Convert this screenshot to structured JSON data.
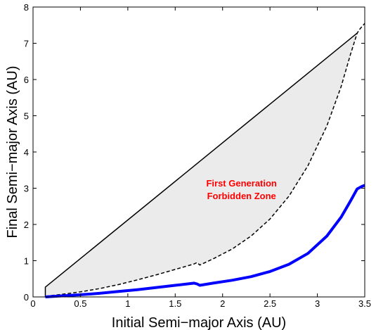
{
  "chart_data": {
    "type": "line",
    "title": "",
    "xlabel": "Initial Semi−major Axis (AU)",
    "ylabel": "Final Semi−major Axis (AU)",
    "xlim": [
      0,
      3.5
    ],
    "ylim": [
      0,
      8
    ],
    "xticks": [
      0,
      0.5,
      1,
      1.5,
      2,
      2.5,
      3,
      3.5
    ],
    "xtick_labels": [
      "0",
      "0.5",
      "1",
      "1.5",
      "2",
      "2.5",
      "3",
      "3.5"
    ],
    "yticks": [
      0,
      1,
      2,
      3,
      4,
      5,
      6,
      7,
      8
    ],
    "ytick_labels": [
      "0",
      "1",
      "2",
      "3",
      "4",
      "5",
      "6",
      "7",
      "8"
    ],
    "grid": false,
    "legend": "none",
    "colors": {
      "zone_fill": "#ebebeb",
      "upper_line": "#000000",
      "dashed_line": "#000000",
      "blue_line": "#0000ff",
      "annotation": "#ff0000"
    },
    "annotation": {
      "line1": "First Generation",
      "line2": "Forbidden Zone",
      "x": 2.2,
      "y1": 3.05,
      "y2": 2.7
    },
    "series": [
      {
        "style": "solid-black",
        "x": [
          0.13,
          0.13,
          3.42
        ],
        "y": [
          0.0,
          0.27,
          7.28
        ]
      },
      {
        "style": "dashed-black",
        "x": [
          0.13,
          0.3,
          0.5,
          0.7,
          0.9,
          1.1,
          1.3,
          1.5,
          1.7,
          1.73,
          1.76,
          1.9,
          2.1,
          2.3,
          2.5,
          2.7,
          2.9,
          3.1,
          3.25,
          3.35,
          3.42,
          3.45,
          3.5
        ],
        "y": [
          0.02,
          0.07,
          0.14,
          0.23,
          0.34,
          0.47,
          0.61,
          0.76,
          0.91,
          0.95,
          0.88,
          1.05,
          1.32,
          1.68,
          2.15,
          2.78,
          3.62,
          4.72,
          5.8,
          6.7,
          7.28,
          7.4,
          7.55
        ]
      },
      {
        "style": "thick-blue",
        "x": [
          0.13,
          0.3,
          0.5,
          0.7,
          0.9,
          1.1,
          1.3,
          1.5,
          1.7,
          1.73,
          1.76,
          1.9,
          2.1,
          2.3,
          2.5,
          2.7,
          2.9,
          3.1,
          3.25,
          3.35,
          3.42,
          3.47,
          3.5
        ],
        "y": [
          0.0,
          0.03,
          0.06,
          0.1,
          0.15,
          0.2,
          0.26,
          0.32,
          0.38,
          0.36,
          0.32,
          0.38,
          0.46,
          0.56,
          0.7,
          0.9,
          1.2,
          1.68,
          2.2,
          2.65,
          2.98,
          3.05,
          3.08
        ]
      }
    ]
  }
}
